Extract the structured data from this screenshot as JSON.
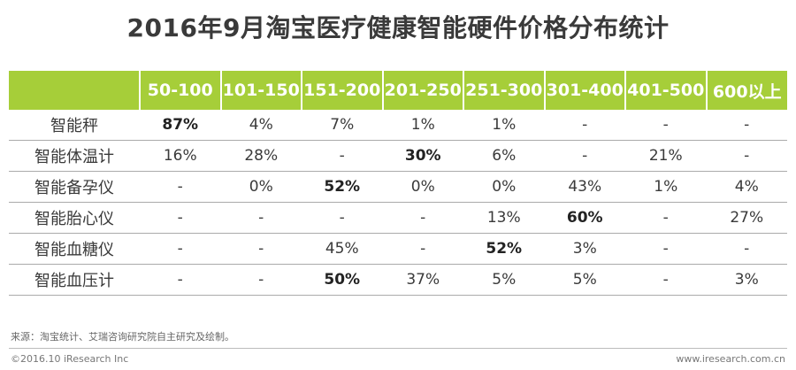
{
  "title": "2016年9月淘宝医疗健康智能硬件价格分布统计",
  "chart_data": {
    "type": "table",
    "columns": [
      "50-100",
      "101-150",
      "151-200",
      "201-250",
      "251-300",
      "301-400",
      "401-500",
      "600以上"
    ],
    "rows": [
      {
        "label": "智能秤",
        "cells": [
          "87%",
          "4%",
          "7%",
          "1%",
          "1%",
          "-",
          "-",
          "-"
        ],
        "bold": [
          0
        ]
      },
      {
        "label": "智能体温计",
        "cells": [
          "16%",
          "28%",
          "-",
          "30%",
          "6%",
          "-",
          "21%",
          "-"
        ],
        "bold": [
          3
        ]
      },
      {
        "label": "智能备孕仪",
        "cells": [
          "-",
          "0%",
          "52%",
          "0%",
          "0%",
          "43%",
          "1%",
          "4%"
        ],
        "bold": [
          2
        ]
      },
      {
        "label": "智能胎心仪",
        "cells": [
          "-",
          "-",
          "-",
          "-",
          "13%",
          "60%",
          "-",
          "27%"
        ],
        "bold": [
          5
        ]
      },
      {
        "label": "智能血糖仪",
        "cells": [
          "-",
          "-",
          "45%",
          "-",
          "52%",
          "3%",
          "-",
          "-"
        ],
        "bold": [
          4
        ]
      },
      {
        "label": "智能血压计",
        "cells": [
          "-",
          "-",
          "50%",
          "37%",
          "5%",
          "5%",
          "-",
          "3%"
        ],
        "bold": [
          2
        ]
      }
    ],
    "header_color": "#a6ce39"
  },
  "source": "来源：淘宝统计、艾瑞咨询研究院自主研究及绘制。",
  "copyright": "©2016.10 iResearch Inc",
  "website": "www.iresearch.com.cn"
}
